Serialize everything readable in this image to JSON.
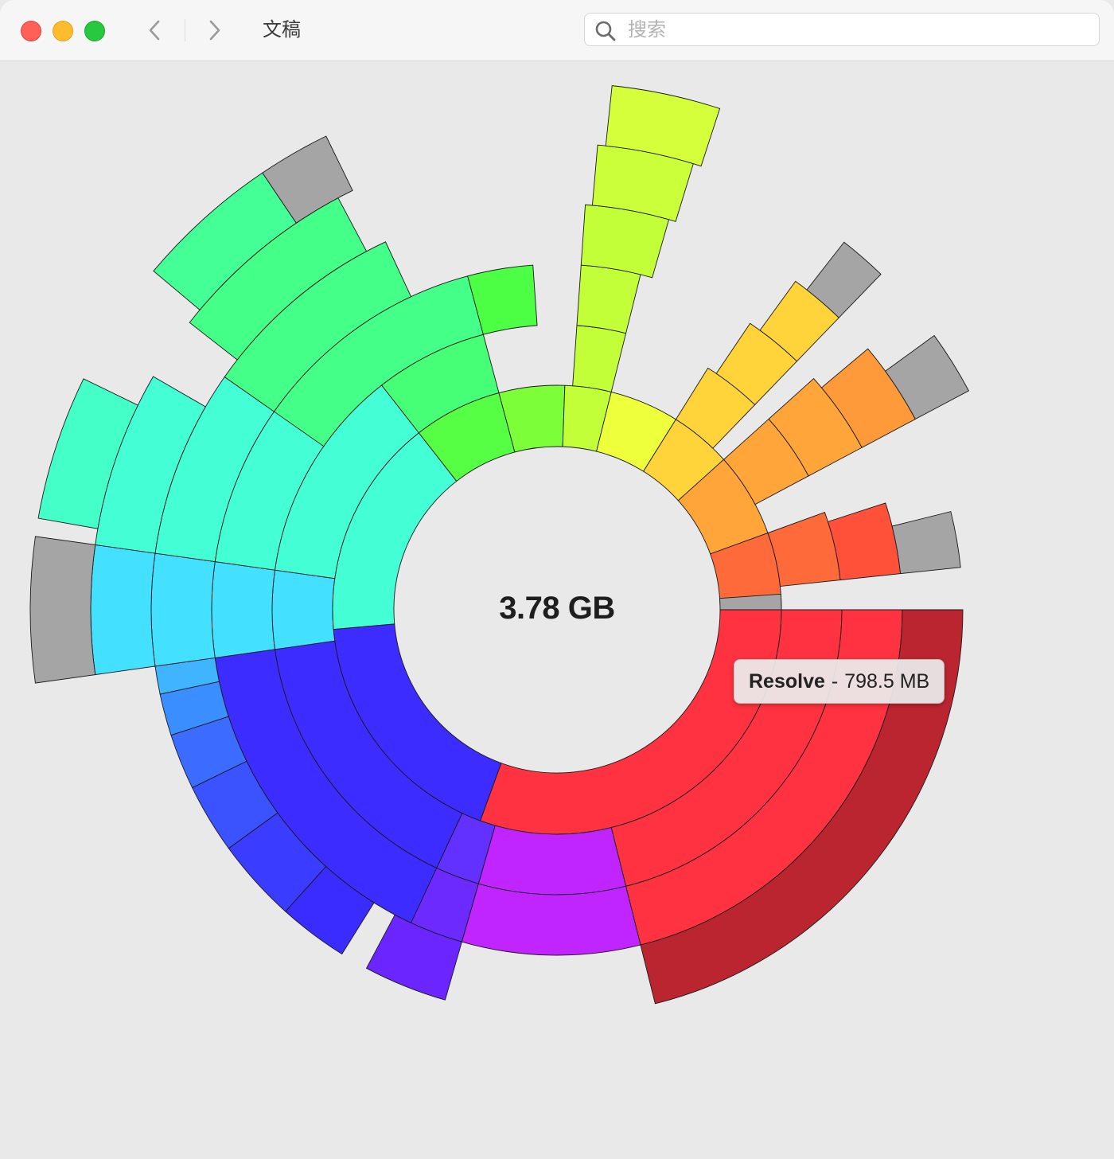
{
  "window": {
    "title": "文稿",
    "search_placeholder": "搜索"
  },
  "toolbar": {
    "icons": [
      "close-light",
      "minimize-light",
      "zoom-light",
      "chevron-left-icon",
      "chevron-right-icon",
      "search-icon"
    ]
  },
  "chart": {
    "total_label": "3.78 GB",
    "tooltip": {
      "name": "Resolve",
      "separator": "-",
      "size": "798.5 MB"
    }
  },
  "colors": {
    "red": "#fe3240",
    "dark_red": "#bb2530",
    "purple": "#c125ff",
    "violet": "#6c2aff",
    "blue": "#3c2cff",
    "cyan": "#44e0ff",
    "aqua": "#44ffd6",
    "green": "#44ff88",
    "lime": "#7cff38",
    "yellow_green": "#c3ff38",
    "yellow": "#ffd43a",
    "orange": "#ffa53a",
    "grey_other": "#a5a5a5"
  }
}
